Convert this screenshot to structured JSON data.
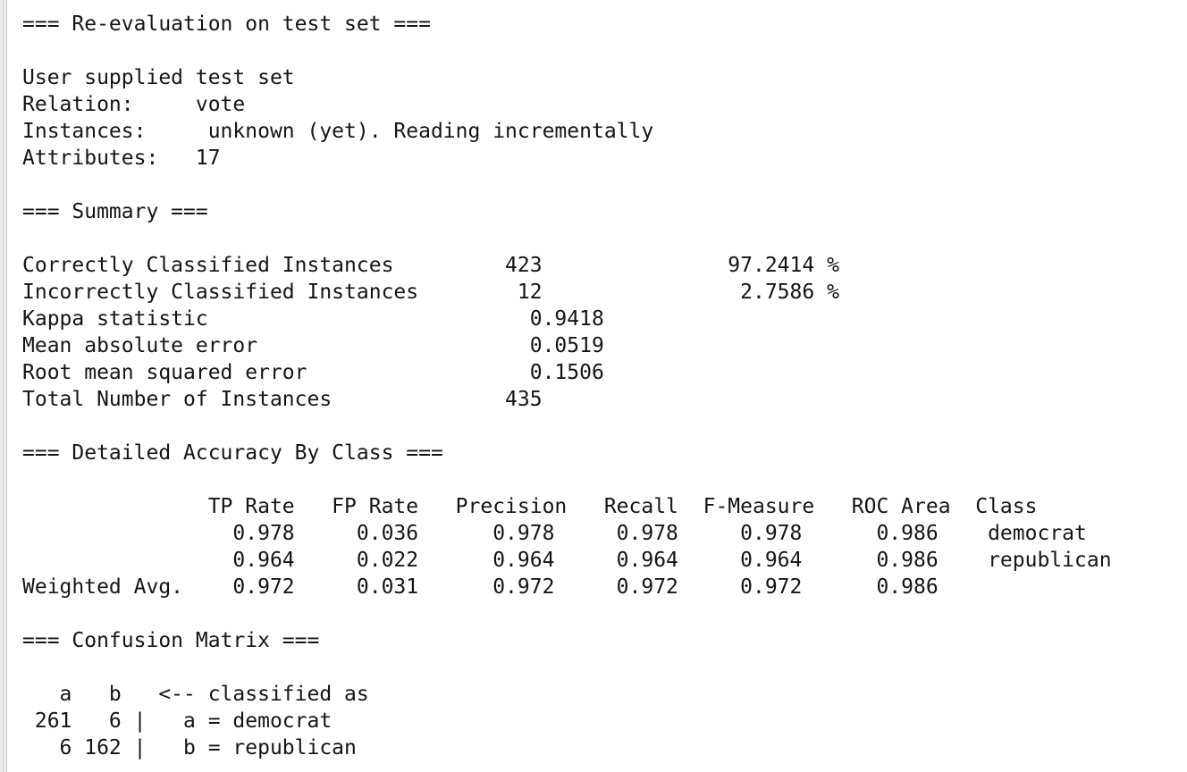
{
  "output": {
    "lines": [
      "=== Re-evaluation on test set ===",
      "",
      "User supplied test set",
      "Relation:     vote",
      "Instances:     unknown (yet). Reading incrementally",
      "Attributes:   17",
      "",
      "=== Summary ===",
      "",
      "Correctly Classified Instances         423               97.2414 %",
      "Incorrectly Classified Instances        12                2.7586 %",
      "Kappa statistic                          0.9418",
      "Mean absolute error                      0.0519",
      "Root mean squared error                  0.1506",
      "Total Number of Instances              435",
      "",
      "=== Detailed Accuracy By Class ===",
      "",
      "               TP Rate   FP Rate   Precision   Recall  F-Measure   ROC Area  Class",
      "                 0.978     0.036      0.978     0.978     0.978      0.986    democrat",
      "                 0.964     0.022      0.964     0.964     0.964      0.986    republican",
      "Weighted Avg.    0.972     0.031      0.972     0.972     0.972      0.986",
      "",
      "=== Confusion Matrix ===",
      "",
      "   a   b   <-- classified as",
      " 261   6 |   a = democrat",
      "   6 162 |   b = republican"
    ]
  }
}
